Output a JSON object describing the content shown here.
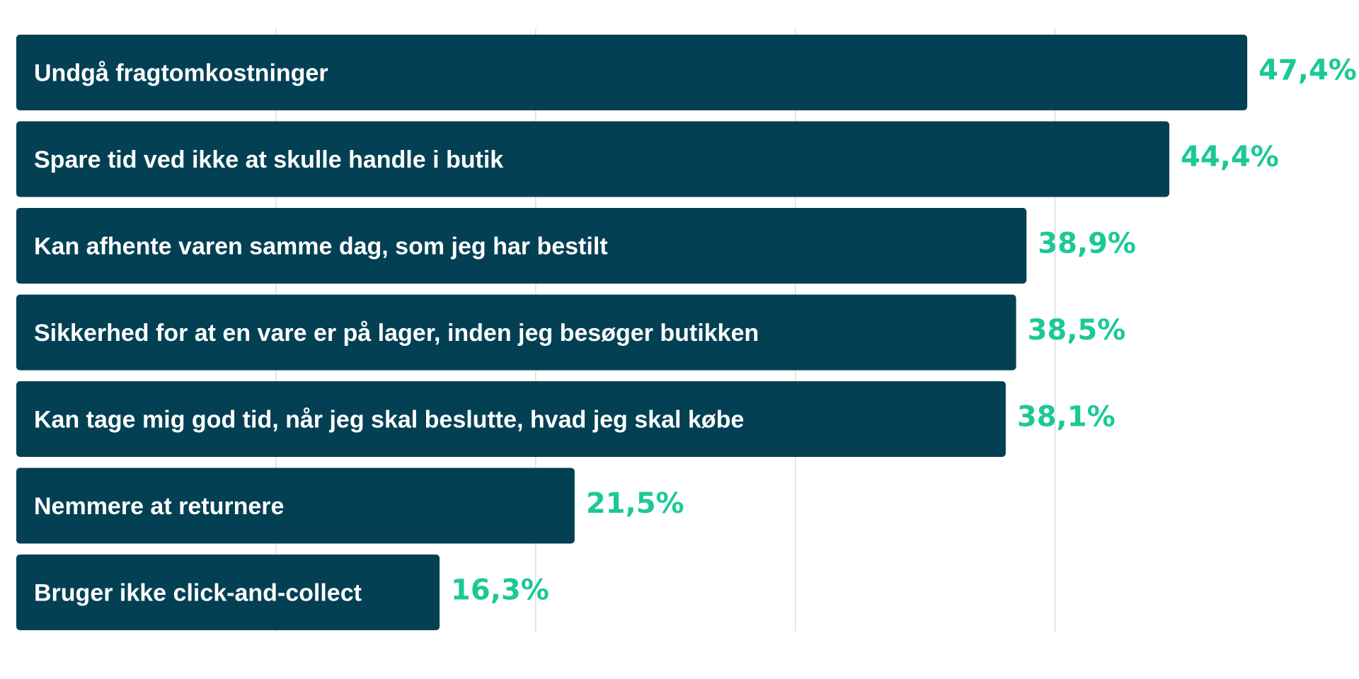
{
  "chart_data": {
    "type": "bar",
    "orientation": "horizontal",
    "categories": [
      "Undgå fragtomkostninger",
      "Spare tid ved ikke at skulle handle i butik",
      "Kan afhente varen samme dag, som jeg har bestilt",
      "Sikkerhed for at en vare er på lager, inden jeg besøger butikken",
      "Kan tage mig god tid, når jeg skal beslutte, hvad jeg skal købe",
      "Nemmere at returnere",
      "Bruger ikke click-and-collect"
    ],
    "values": [
      47.4,
      44.4,
      38.9,
      38.5,
      38.1,
      21.5,
      16.3
    ],
    "value_labels": [
      "47,4%",
      "44,4%",
      "38,9%",
      "38,5%",
      "38,1%",
      "21,5%",
      "16,3%"
    ],
    "xlim": [
      0,
      50
    ],
    "grid": true,
    "grid_values": [
      10,
      20,
      30,
      40
    ],
    "legend": "none",
    "colors": {
      "bar": "#034053",
      "bar_label": "#ffffff",
      "value_label": "#1cc996",
      "grid": "#dddddd",
      "background": "#ffffff"
    }
  }
}
